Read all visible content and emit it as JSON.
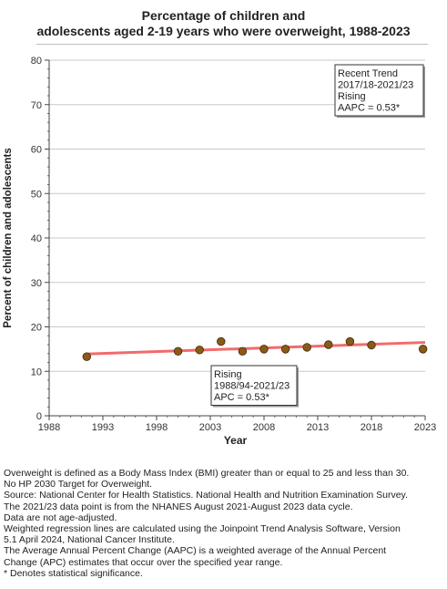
{
  "chart_data": {
    "type": "scatter",
    "title": [
      "Percentage of children and",
      "adolescents aged 2-19 years who were overweight, 1988-2023"
    ],
    "xlabel": "Year",
    "ylabel": "Percent of children and adolescents",
    "xlim": [
      1988,
      2023
    ],
    "ylim": [
      0,
      80
    ],
    "x_ticks": [
      1988,
      1993,
      1998,
      2003,
      2008,
      2013,
      2018,
      2023
    ],
    "y_ticks": [
      0,
      10,
      20,
      30,
      40,
      50,
      60,
      70,
      80
    ],
    "grid": "horizontal",
    "points": [
      {
        "x": 1991.5,
        "y": 13.3
      },
      {
        "x": 2000,
        "y": 14.5
      },
      {
        "x": 2002,
        "y": 14.8
      },
      {
        "x": 2004,
        "y": 16.7
      },
      {
        "x": 2006,
        "y": 14.5
      },
      {
        "x": 2008,
        "y": 15.0
      },
      {
        "x": 2010,
        "y": 15.0
      },
      {
        "x": 2012,
        "y": 15.4
      },
      {
        "x": 2014,
        "y": 16.0
      },
      {
        "x": 2016,
        "y": 16.7
      },
      {
        "x": 2018,
        "y": 15.9
      },
      {
        "x": 2022.8,
        "y": 15.0
      }
    ],
    "trend_line": {
      "x": [
        1991.5,
        2023
      ],
      "y": [
        13.9,
        16.5
      ],
      "color": "#f26b6b"
    },
    "point_color": "#8b5a16",
    "annotations": [
      {
        "id": "recent",
        "lines": [
          "Recent Trend",
          "2017/18-2021/23",
          "Rising",
          "AAPC =  0.53*"
        ],
        "placement": "top-right"
      },
      {
        "id": "overall",
        "lines": [
          "Rising",
          "1988/94-2021/23",
          "APC =  0.53*"
        ],
        "placement": "bottom-center"
      }
    ]
  },
  "notes": [
    "Overweight is defined as a Body Mass Index (BMI) greater than or equal to 25 and less than 30.",
    "No HP 2030 Target for Overweight.",
    "Source: National Center for Health Statistics. National Health and Nutrition Examination Survey.",
    "The 2021/23 data point is from the NHANES August 2021-August 2023 data cycle.",
    "Data are not age-adjusted.",
    "Weighted regression lines are calculated using the Joinpoint Trend Analysis Software, Version",
    "5.1 April 2024, National Cancer Institute.",
    "The Average Annual Percent Change (AAPC) is a weighted average of the Annual Percent",
    "Change (APC) estimates that occur over the specified year range.",
    "* Denotes statistical significance."
  ]
}
